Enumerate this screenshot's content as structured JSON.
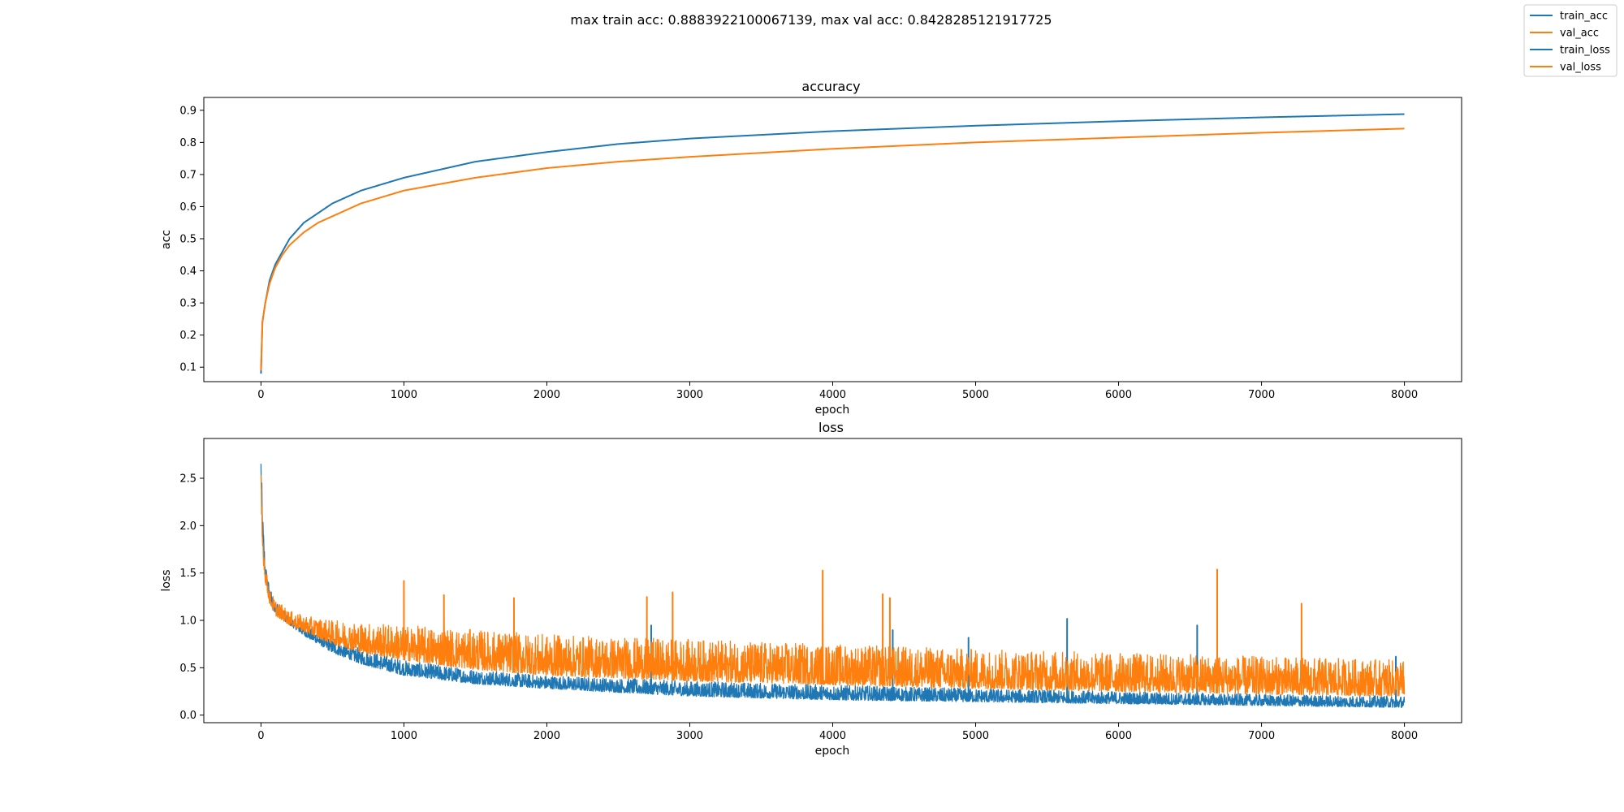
{
  "figure": {
    "suptitle": "max train acc: 0.8883922100067139, max val acc: 0.8428285121917725"
  },
  "legend": {
    "placement": "top-right",
    "entries": [
      {
        "label": "train_acc",
        "color": "#1f77b4"
      },
      {
        "label": "val_acc",
        "color": "#ff7f0e"
      },
      {
        "label": "train_loss",
        "color": "#1f77b4"
      },
      {
        "label": "val_loss",
        "color": "#ff7f0e"
      }
    ]
  },
  "colors": {
    "train": "#1f77b4",
    "val": "#ff7f0e"
  },
  "chart_data": [
    {
      "type": "line",
      "title": "accuracy",
      "xlabel": "epoch",
      "ylabel": "acc",
      "xlim": [
        -400,
        8400
      ],
      "ylim": [
        0.055,
        0.94
      ],
      "xticks": [
        0,
        1000,
        2000,
        3000,
        4000,
        5000,
        6000,
        7000,
        8000
      ],
      "yticks": [
        0.1,
        0.2,
        0.3,
        0.4,
        0.5,
        0.6,
        0.7,
        0.8,
        0.9
      ],
      "ytick_labels": [
        "0.1",
        "0.2",
        "0.3",
        "0.4",
        "0.5",
        "0.6",
        "0.7",
        "0.8",
        "0.9"
      ],
      "grid": false,
      "series": [
        {
          "name": "train_acc",
          "color": "#1f77b4",
          "x": [
            0,
            10,
            30,
            60,
            100,
            150,
            200,
            300,
            400,
            500,
            700,
            1000,
            1500,
            2000,
            2500,
            3000,
            4000,
            5000,
            6000,
            7000,
            8000
          ],
          "y": [
            0.08,
            0.24,
            0.3,
            0.37,
            0.42,
            0.46,
            0.5,
            0.55,
            0.58,
            0.61,
            0.65,
            0.69,
            0.74,
            0.77,
            0.795,
            0.812,
            0.835,
            0.852,
            0.866,
            0.878,
            0.888
          ]
        },
        {
          "name": "val_acc",
          "color": "#ff7f0e",
          "x": [
            0,
            10,
            30,
            60,
            100,
            150,
            200,
            300,
            400,
            500,
            700,
            1000,
            1500,
            2000,
            2500,
            3000,
            4000,
            5000,
            6000,
            7000,
            8000
          ],
          "y": [
            0.09,
            0.24,
            0.3,
            0.36,
            0.41,
            0.45,
            0.48,
            0.52,
            0.55,
            0.57,
            0.61,
            0.65,
            0.69,
            0.72,
            0.74,
            0.755,
            0.78,
            0.8,
            0.815,
            0.83,
            0.843
          ]
        }
      ]
    },
    {
      "type": "line",
      "title": "loss",
      "xlabel": "epoch",
      "ylabel": "loss",
      "xlim": [
        -400,
        8400
      ],
      "ylim": [
        -0.08,
        2.92
      ],
      "xticks": [
        0,
        1000,
        2000,
        3000,
        4000,
        5000,
        6000,
        7000,
        8000
      ],
      "yticks": [
        0.0,
        0.5,
        1.0,
        1.5,
        2.0,
        2.5
      ],
      "ytick_labels": [
        "0.0",
        "0.5",
        "1.0",
        "1.5",
        "2.0",
        "2.5"
      ],
      "grid": false,
      "series": [
        {
          "name": "train_loss",
          "color": "#1f77b4",
          "x": [
            0,
            10,
            30,
            60,
            100,
            200,
            300,
            500,
            700,
            1000,
            1500,
            2000,
            3000,
            4000,
            5000,
            6000,
            7000,
            8000
          ],
          "y_min": [
            2.5,
            1.8,
            1.45,
            1.2,
            1.08,
            0.95,
            0.84,
            0.66,
            0.54,
            0.42,
            0.33,
            0.28,
            0.2,
            0.16,
            0.14,
            0.12,
            0.1,
            0.08
          ],
          "y_max": [
            2.8,
            2.22,
            1.62,
            1.35,
            1.2,
            1.05,
            0.95,
            0.8,
            0.7,
            0.58,
            0.48,
            0.42,
            0.36,
            0.32,
            0.28,
            0.25,
            0.22,
            0.2
          ],
          "spikes": [
            {
              "x": 2730,
              "y": 0.95
            },
            {
              "x": 4420,
              "y": 0.9
            },
            {
              "x": 4950,
              "y": 0.82
            },
            {
              "x": 5640,
              "y": 1.02
            },
            {
              "x": 6550,
              "y": 0.95
            },
            {
              "x": 7940,
              "y": 0.62
            }
          ]
        },
        {
          "name": "val_loss",
          "color": "#ff7f0e",
          "x": [
            0,
            10,
            30,
            60,
            100,
            200,
            300,
            500,
            700,
            1000,
            1500,
            2000,
            3000,
            4000,
            5000,
            6000,
            7000,
            8000
          ],
          "y_min": [
            2.2,
            1.7,
            1.4,
            1.18,
            1.05,
            0.95,
            0.88,
            0.75,
            0.66,
            0.58,
            0.48,
            0.42,
            0.36,
            0.32,
            0.28,
            0.25,
            0.22,
            0.2
          ],
          "y_max": [
            2.58,
            2.1,
            1.6,
            1.32,
            1.22,
            1.1,
            1.05,
            1.0,
            0.98,
            0.95,
            0.9,
            0.85,
            0.8,
            0.75,
            0.7,
            0.66,
            0.62,
            0.58
          ],
          "spikes": [
            {
              "x": 1000,
              "y": 1.42
            },
            {
              "x": 1280,
              "y": 1.27
            },
            {
              "x": 1770,
              "y": 1.24
            },
            {
              "x": 2700,
              "y": 1.25
            },
            {
              "x": 2880,
              "y": 1.3
            },
            {
              "x": 3930,
              "y": 1.53
            },
            {
              "x": 4350,
              "y": 1.28
            },
            {
              "x": 4400,
              "y": 1.24
            },
            {
              "x": 6690,
              "y": 1.54
            },
            {
              "x": 7280,
              "y": 1.18
            }
          ]
        }
      ]
    }
  ]
}
